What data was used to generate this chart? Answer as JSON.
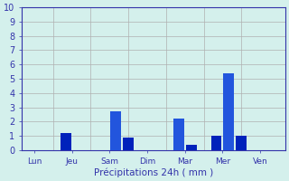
{
  "background_color": "#d4f0ec",
  "bar_color_dark": "#0022bb",
  "bar_color_light": "#2255dd",
  "grid_color": "#b0b0b0",
  "axis_color": "#3333aa",
  "text_color": "#3333aa",
  "xlabel": "Précipitations 24h ( mm )",
  "ylim": [
    0,
    10
  ],
  "yticks": [
    0,
    1,
    2,
    3,
    4,
    5,
    6,
    7,
    8,
    9,
    10
  ],
  "n_bars": 21,
  "values": [
    0,
    0,
    0,
    1.2,
    0,
    0,
    0,
    2.7,
    0.9,
    0,
    0,
    0,
    2.2,
    0.4,
    0,
    1.0,
    5.4,
    1.0,
    0,
    0,
    0
  ],
  "xtick_positions": [
    0.5,
    3.5,
    6.5,
    9.5,
    12.5,
    15.5,
    18.5
  ],
  "xtick_labels": [
    "Lun",
    "Jeu",
    "Sam",
    "Dim",
    "Mar",
    "Mer",
    "Ven"
  ],
  "vline_positions": [
    2,
    5,
    8,
    11,
    14,
    17
  ]
}
